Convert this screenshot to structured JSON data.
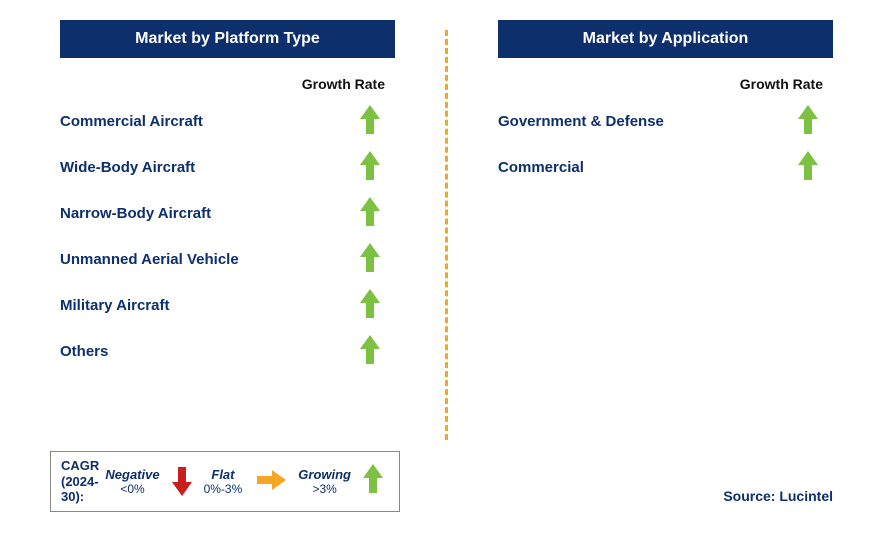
{
  "colors": {
    "header_bg": "#0d2f6c",
    "header_text": "#ffffff",
    "label_text": "#0d2f6c",
    "growth_header_text": "#111111",
    "divider": "#f5a623",
    "arrow_growing": "#7cc142",
    "arrow_flat": "#f5a623",
    "arrow_negative": "#c71e1e",
    "legend_border": "#888888",
    "legend_title": "#0d2f6c",
    "source_text": "#0d2f6c",
    "background": "#ffffff"
  },
  "growth_rate_label": "Growth Rate",
  "left": {
    "title": "Market by Platform Type",
    "items": [
      {
        "label": "Commercial Aircraft",
        "growth": "growing"
      },
      {
        "label": "Wide-Body Aircraft",
        "growth": "growing"
      },
      {
        "label": "Narrow-Body Aircraft",
        "growth": "growing"
      },
      {
        "label": "Unmanned Aerial Vehicle",
        "growth": "growing"
      },
      {
        "label": "Military Aircraft",
        "growth": "growing"
      },
      {
        "label": "Others",
        "growth": "growing"
      }
    ]
  },
  "right": {
    "title": "Market by Application",
    "items": [
      {
        "label": "Government & Defense",
        "growth": "growing"
      },
      {
        "label": "Commercial",
        "growth": "growing"
      }
    ]
  },
  "legend": {
    "cagr_label_line1": "CAGR",
    "cagr_label_line2": "(2024-30):",
    "negative": {
      "title": "Negative",
      "range": "<0%"
    },
    "flat": {
      "title": "Flat",
      "range": "0%-3%"
    },
    "growing": {
      "title": "Growing",
      "range": ">3%"
    }
  },
  "source": "Source: Lucintel"
}
